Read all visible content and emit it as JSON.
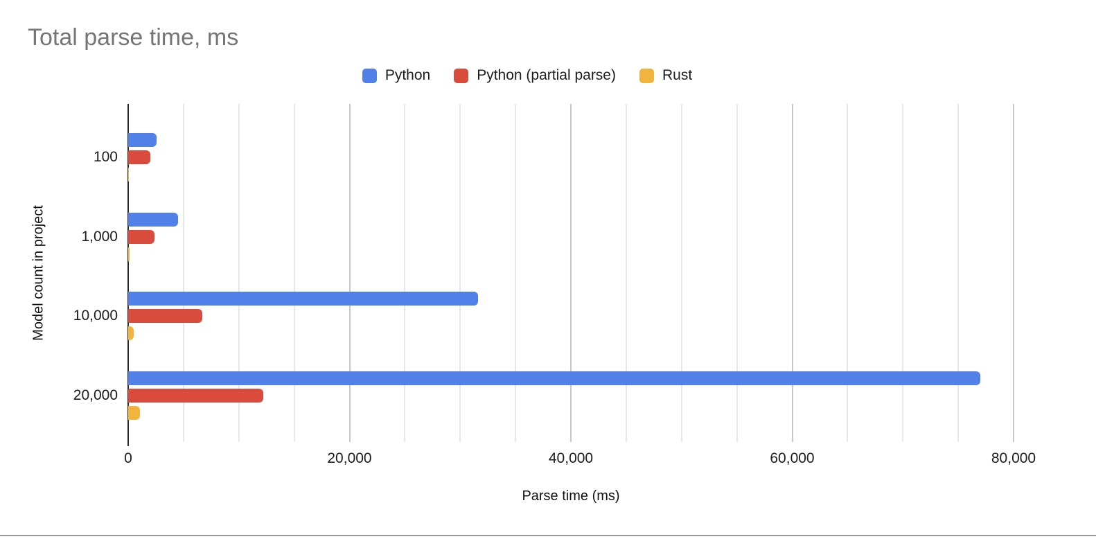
{
  "chart_data": {
    "type": "bar",
    "orientation": "horizontal",
    "title": "Total parse time, ms",
    "xlabel": "Parse time (ms)",
    "ylabel": "Model count in project",
    "categories": [
      "100",
      "1,000",
      "10,000",
      "20,000"
    ],
    "series": [
      {
        "name": "Python",
        "color": "#5181e8",
        "values": [
          2550,
          4500,
          31600,
          77000
        ]
      },
      {
        "name": "Python (partial parse)",
        "color": "#d94c3d",
        "values": [
          2000,
          2400,
          6700,
          12200
        ]
      },
      {
        "name": "Rust",
        "color": "#f1b53d",
        "values": [
          90,
          110,
          500,
          1060
        ]
      }
    ],
    "xlim": [
      0,
      80000
    ],
    "x_ticks": [
      0,
      20000,
      40000,
      60000,
      80000
    ],
    "x_tick_labels": [
      "0",
      "20,000",
      "40,000",
      "60,000",
      "80,000"
    ],
    "gridline_step_minor": 5000,
    "gridline_step_major": 20000,
    "grid": true,
    "legend_position": "top"
  },
  "colors": {
    "title_text": "#757575",
    "axis_line": "#2b2b2b",
    "gridline_minor": "#e7e7e7",
    "gridline_major": "#c8c8c8",
    "label_text": "#1c1c1c",
    "divider": "#98999b",
    "background": "#ffffff"
  }
}
